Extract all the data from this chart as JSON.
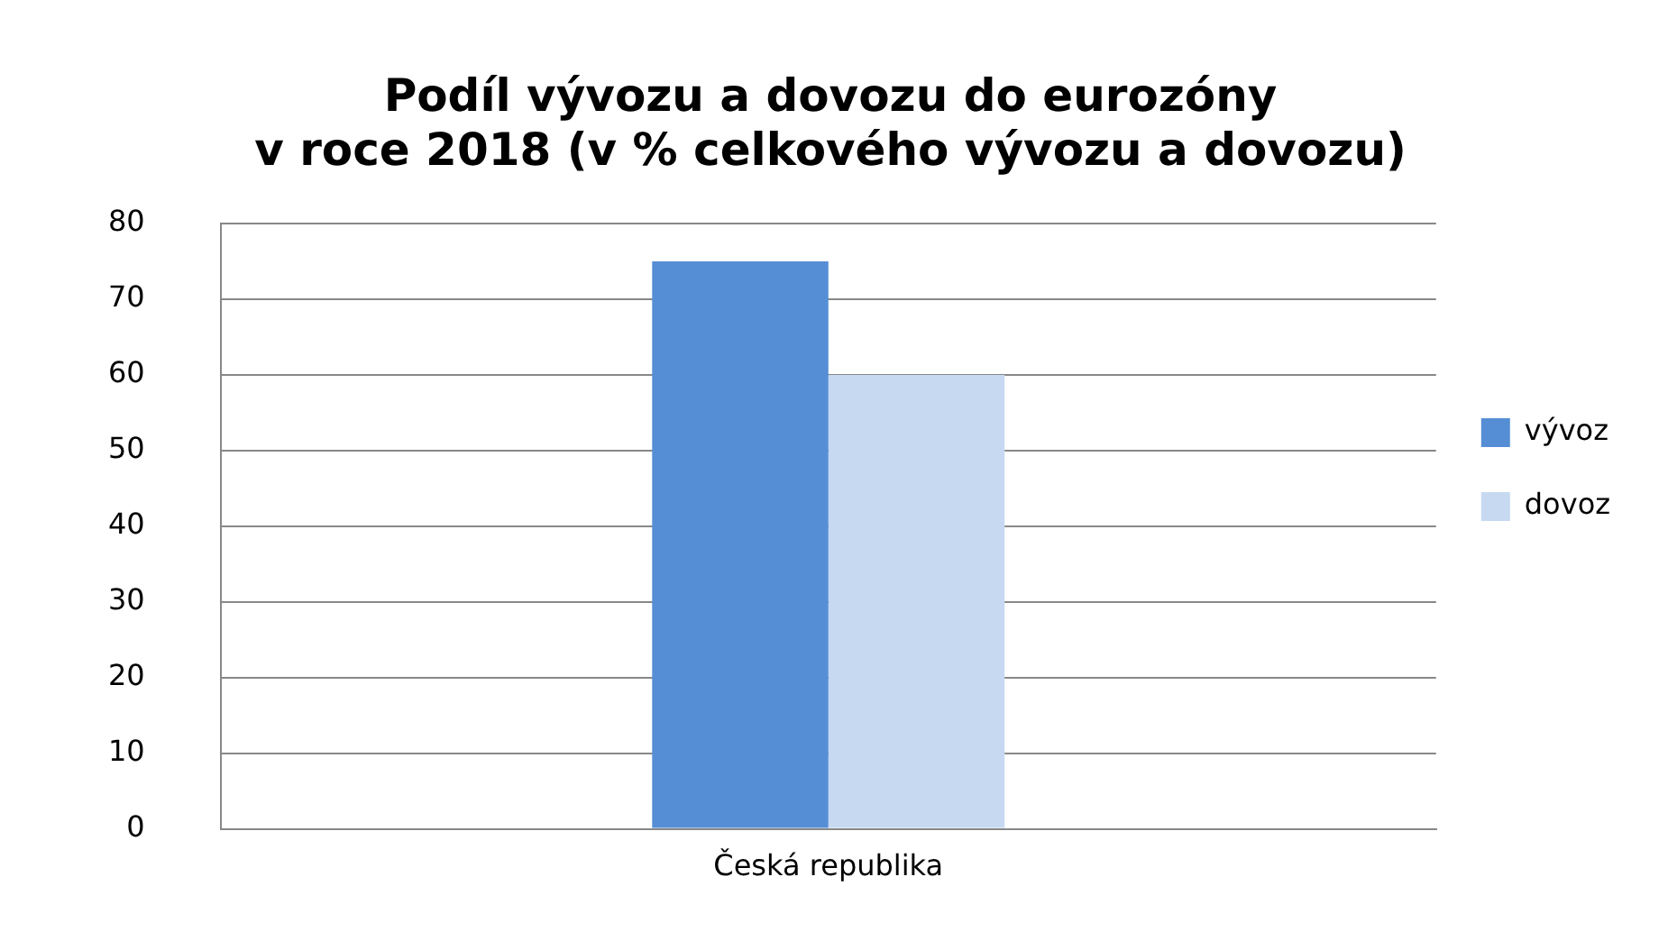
{
  "chart_data": {
    "type": "bar",
    "title": "Podíl vývozu a dovozu do eurozóny\nv roce 2018 (v % celkového vývozu a dovozu)",
    "categories": [
      "Česká republika"
    ],
    "series": [
      {
        "name": "vývoz",
        "color": "#558ed5",
        "values": [
          75
        ]
      },
      {
        "name": "dovoz",
        "color": "#c6d9f1",
        "values": [
          60
        ]
      }
    ],
    "ylim": [
      0,
      80
    ],
    "yticks": [
      0,
      10,
      20,
      30,
      40,
      50,
      60,
      70,
      80
    ],
    "grid": "y",
    "legend": "right"
  }
}
